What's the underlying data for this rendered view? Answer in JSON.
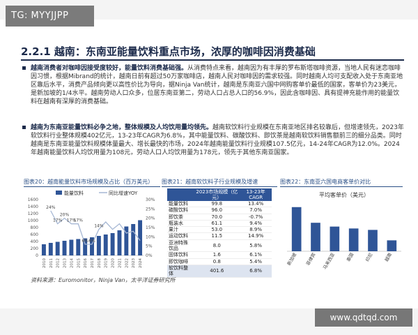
{
  "tag": "TG: MYYJJPP",
  "watermark": "www.qdtqd.com",
  "section_title": "2.2.1 越南：东南亚能量饮料重点市场，浓厚的咖啡因消费基础",
  "bullets": [
    {
      "bold": "越南消费者对咖啡因接受度较好，能量饮料消费基础强。",
      "text": "从消费特点来看，越南因为有丰厚的罗布斯塔咖啡资源，当地人民有迷恋咖啡因习惯，根据Mibrand的统计，越南日前有超过50万家咖啡店，越南人民对咖啡因的需求较强。同时越南人均可支配收入处于东南亚地区靠后水平，消费产品倾向更以高性价比为导向，据Ninja Van统计，越南是东南亚六国中网购客单价最低的国家，客单价为23美元，是新加坡的1/4水平。越南劳动人口众多，位居东南亚第二，劳动人口占总人口的56.9%，因此含咖啡因、具有提神充能作用的能量饮料在越南有深厚的消费基础。"
    },
    {
      "bold": "越南为东南亚能量饮料必争之地，整体规模及人均饮用量均领先。",
      "text": "越南软饮料行业规模在东南亚地区排名较靠后，但增速领先，2023年软饮料行业整体规模402亿元，13-23年CAGR为6.8%，其中能量饮料、碳酸饮料、即饮茶是越南软饮料销售额前三的细分品类。同时越南是东南亚能量饮料规模体量最大、增长最快的市场，2024年越南能量饮料行业规模107.5亿元，14-24年CAGR为12.0%。2024年越南能量饮料人均饮用量为108元，劳动人口人均饮用量为178元，领先于其他东南亚国家。"
    }
  ],
  "figures": {
    "fig20": "图表20：越南能量饮料市场规模及占比（百万美元）",
    "fig21": "图表21：越南软饮料子行业规模及增速",
    "fig22": "图表22：东南亚六国电商客单价对比"
  },
  "source": "资料来源：Euromonitor，Ninja Van，太平洋证券研究所",
  "chart_data": [
    {
      "type": "bar",
      "title": "",
      "legend": [
        "能量饮料",
        "同比增速YOY"
      ],
      "legend_placement": "top",
      "categories": [
        "2010",
        "2011",
        "2012",
        "2013",
        "2014",
        "2015",
        "2016",
        "2017",
        "2018",
        "2019",
        "2020",
        "2021",
        "2022",
        "2023",
        "2024"
      ],
      "series": [
        {
          "name": "能量饮料",
          "values": [
            320,
            360,
            390,
            420,
            450,
            470,
            490,
            520,
            560,
            600,
            640,
            720,
            830,
            900,
            1010
          ]
        },
        {
          "name": "同比增速YOY",
          "values": [
            null,
            24,
            17,
            20,
            17,
            17,
            6,
            6,
            14,
            18,
            14,
            17,
            12,
            13,
            8
          ]
        }
      ],
      "point_labels": [
        "24%",
        "17%",
        "20%",
        "17%",
        "17%",
        "6%",
        "14%",
        "8%"
      ],
      "ylim": [
        0,
        1600
      ],
      "yticks": [
        0,
        200,
        400,
        600,
        800,
        1000,
        1200,
        1400,
        1600
      ],
      "y2lim": [
        0,
        30
      ],
      "y2ticks": [
        "0%",
        "5%",
        "10%",
        "15%",
        "20%",
        "25%",
        "30%"
      ]
    },
    {
      "type": "table",
      "columns": [
        "",
        "2023市场规模（亿元）",
        "13-23年CAGR"
      ],
      "rows": [
        [
          "能量饮料",
          "99.8",
          "13.4%"
        ],
        [
          "碳酸饮料",
          "96.0",
          "7.0%"
        ],
        [
          "即饮茶",
          "70.0",
          "-0.7%"
        ],
        [
          "瓶装水",
          "61.1",
          "9.4%"
        ],
        [
          "果汁",
          "53.0",
          "8.9%"
        ],
        [
          "运动饮料",
          "11.5",
          "14.9%"
        ],
        [
          "亚洲特殊饮品",
          "8.0",
          "5.8%"
        ],
        [
          "固体饮料",
          "1.6",
          "6.1%"
        ],
        [
          "即饮咖啡",
          "0.8",
          "5.4%"
        ],
        [
          "软饮料整体",
          "401.6",
          "6.8%"
        ]
      ]
    },
    {
      "type": "bar",
      "title": "平均客单价（美元）",
      "categories": [
        "新加坡",
        "菲律宾",
        "马来西亚",
        "泰国",
        "印尼",
        "越南"
      ],
      "values": [
        93,
        60,
        52,
        48,
        45,
        23
      ],
      "ylim": [
        0,
        100
      ]
    }
  ]
}
